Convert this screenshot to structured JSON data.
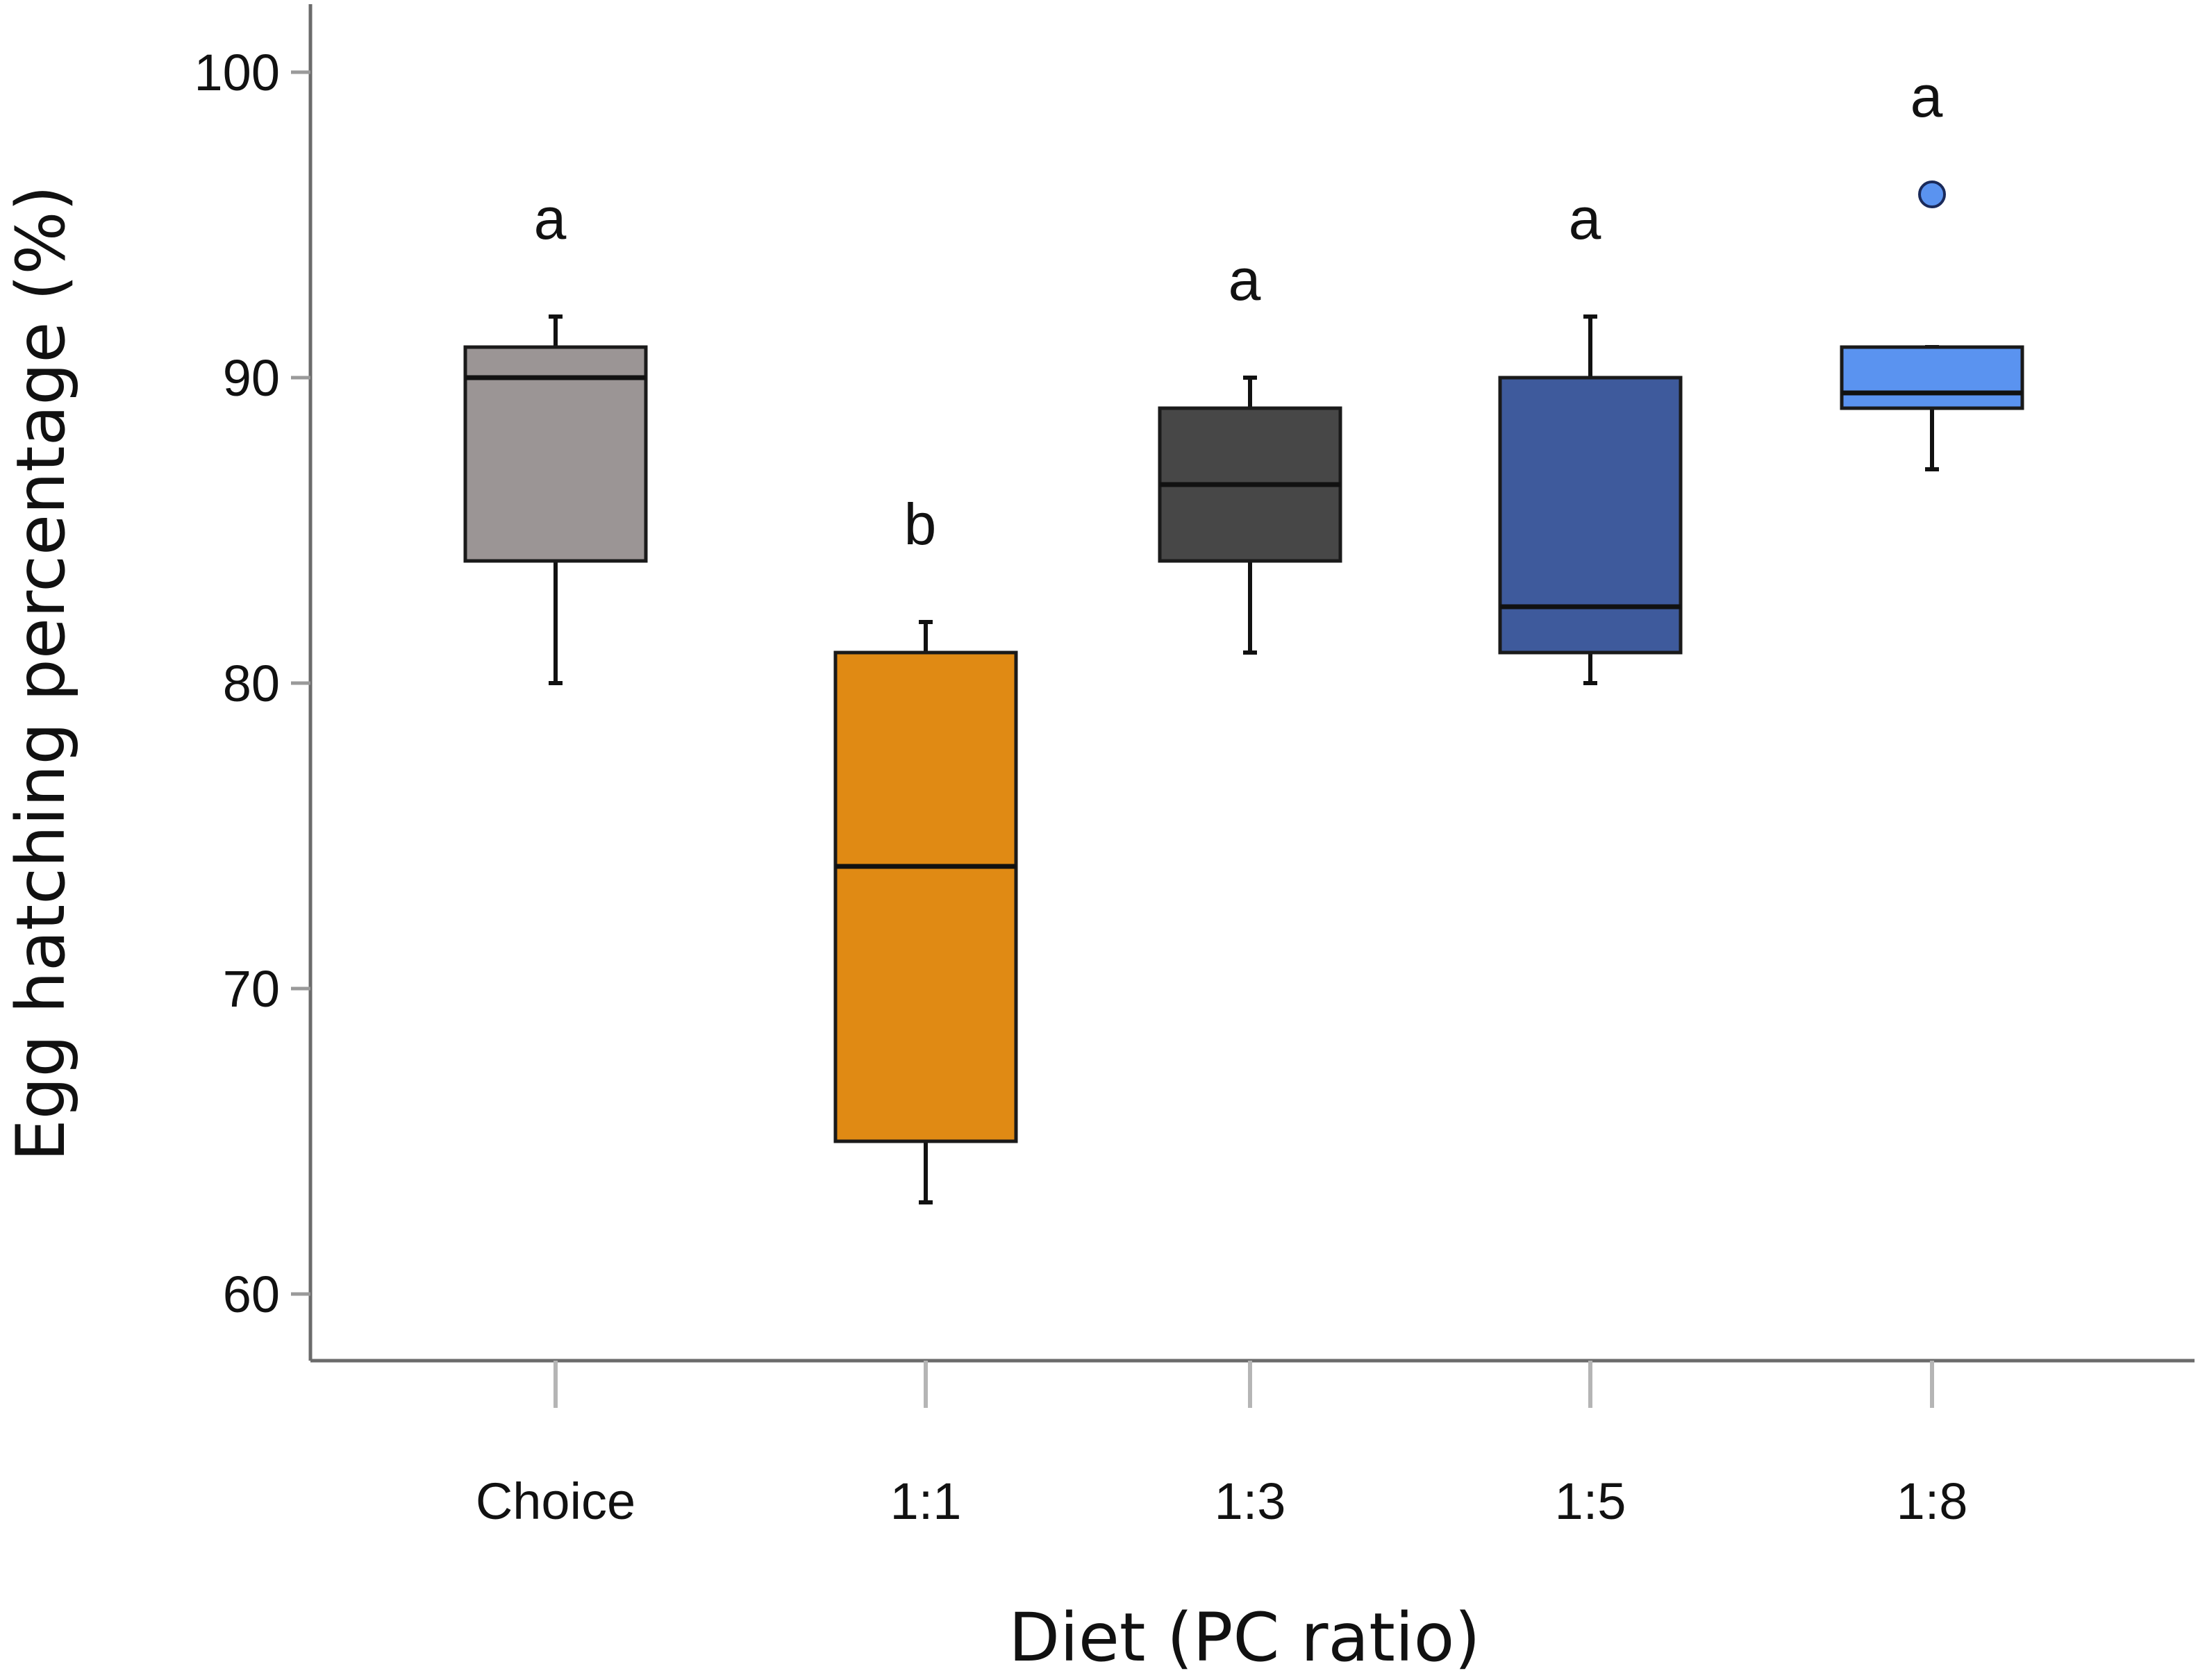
{
  "chart_data": {
    "type": "boxplot",
    "title": "",
    "xlabel": "Diet (PC ratio)",
    "ylabel": "Egg hatching percentage (%)",
    "ylim": [
      57.9,
      102.2
    ],
    "yticks": [
      60,
      70,
      80,
      90,
      100
    ],
    "ytick_labels": [
      "60",
      "70",
      "80",
      "90",
      "100"
    ],
    "categories": [
      "Choice",
      "1:1",
      "1:3",
      "1:5",
      "1:8"
    ],
    "boxes": [
      {
        "category": "Choice",
        "whisker_low": 80,
        "q1": 84,
        "median": 90,
        "q3": 91,
        "whisker_high": 92,
        "outliers": [],
        "letter": "a",
        "color": "#9b9595"
      },
      {
        "category": "1:1",
        "whisker_low": 63,
        "q1": 65,
        "median": 74,
        "q3": 81,
        "whisker_high": 82,
        "outliers": [],
        "letter": "b",
        "color": "#e08a14"
      },
      {
        "category": "1:3",
        "whisker_low": 81,
        "q1": 84,
        "median": 86.5,
        "q3": 89,
        "whisker_high": 90,
        "outliers": [],
        "letter": "a",
        "color": "#474747"
      },
      {
        "category": "1:5",
        "whisker_low": 80,
        "q1": 81,
        "median": 82.5,
        "q3": 90,
        "whisker_high": 92,
        "outliers": [],
        "letter": "a",
        "color": "#3e5a9c"
      },
      {
        "category": "1:8",
        "whisker_low": 87,
        "q1": 89,
        "median": 89.5,
        "q3": 91,
        "whisker_high": 91,
        "outliers": [
          96
        ],
        "letter": "a",
        "color": "#5a93f0"
      }
    ]
  }
}
